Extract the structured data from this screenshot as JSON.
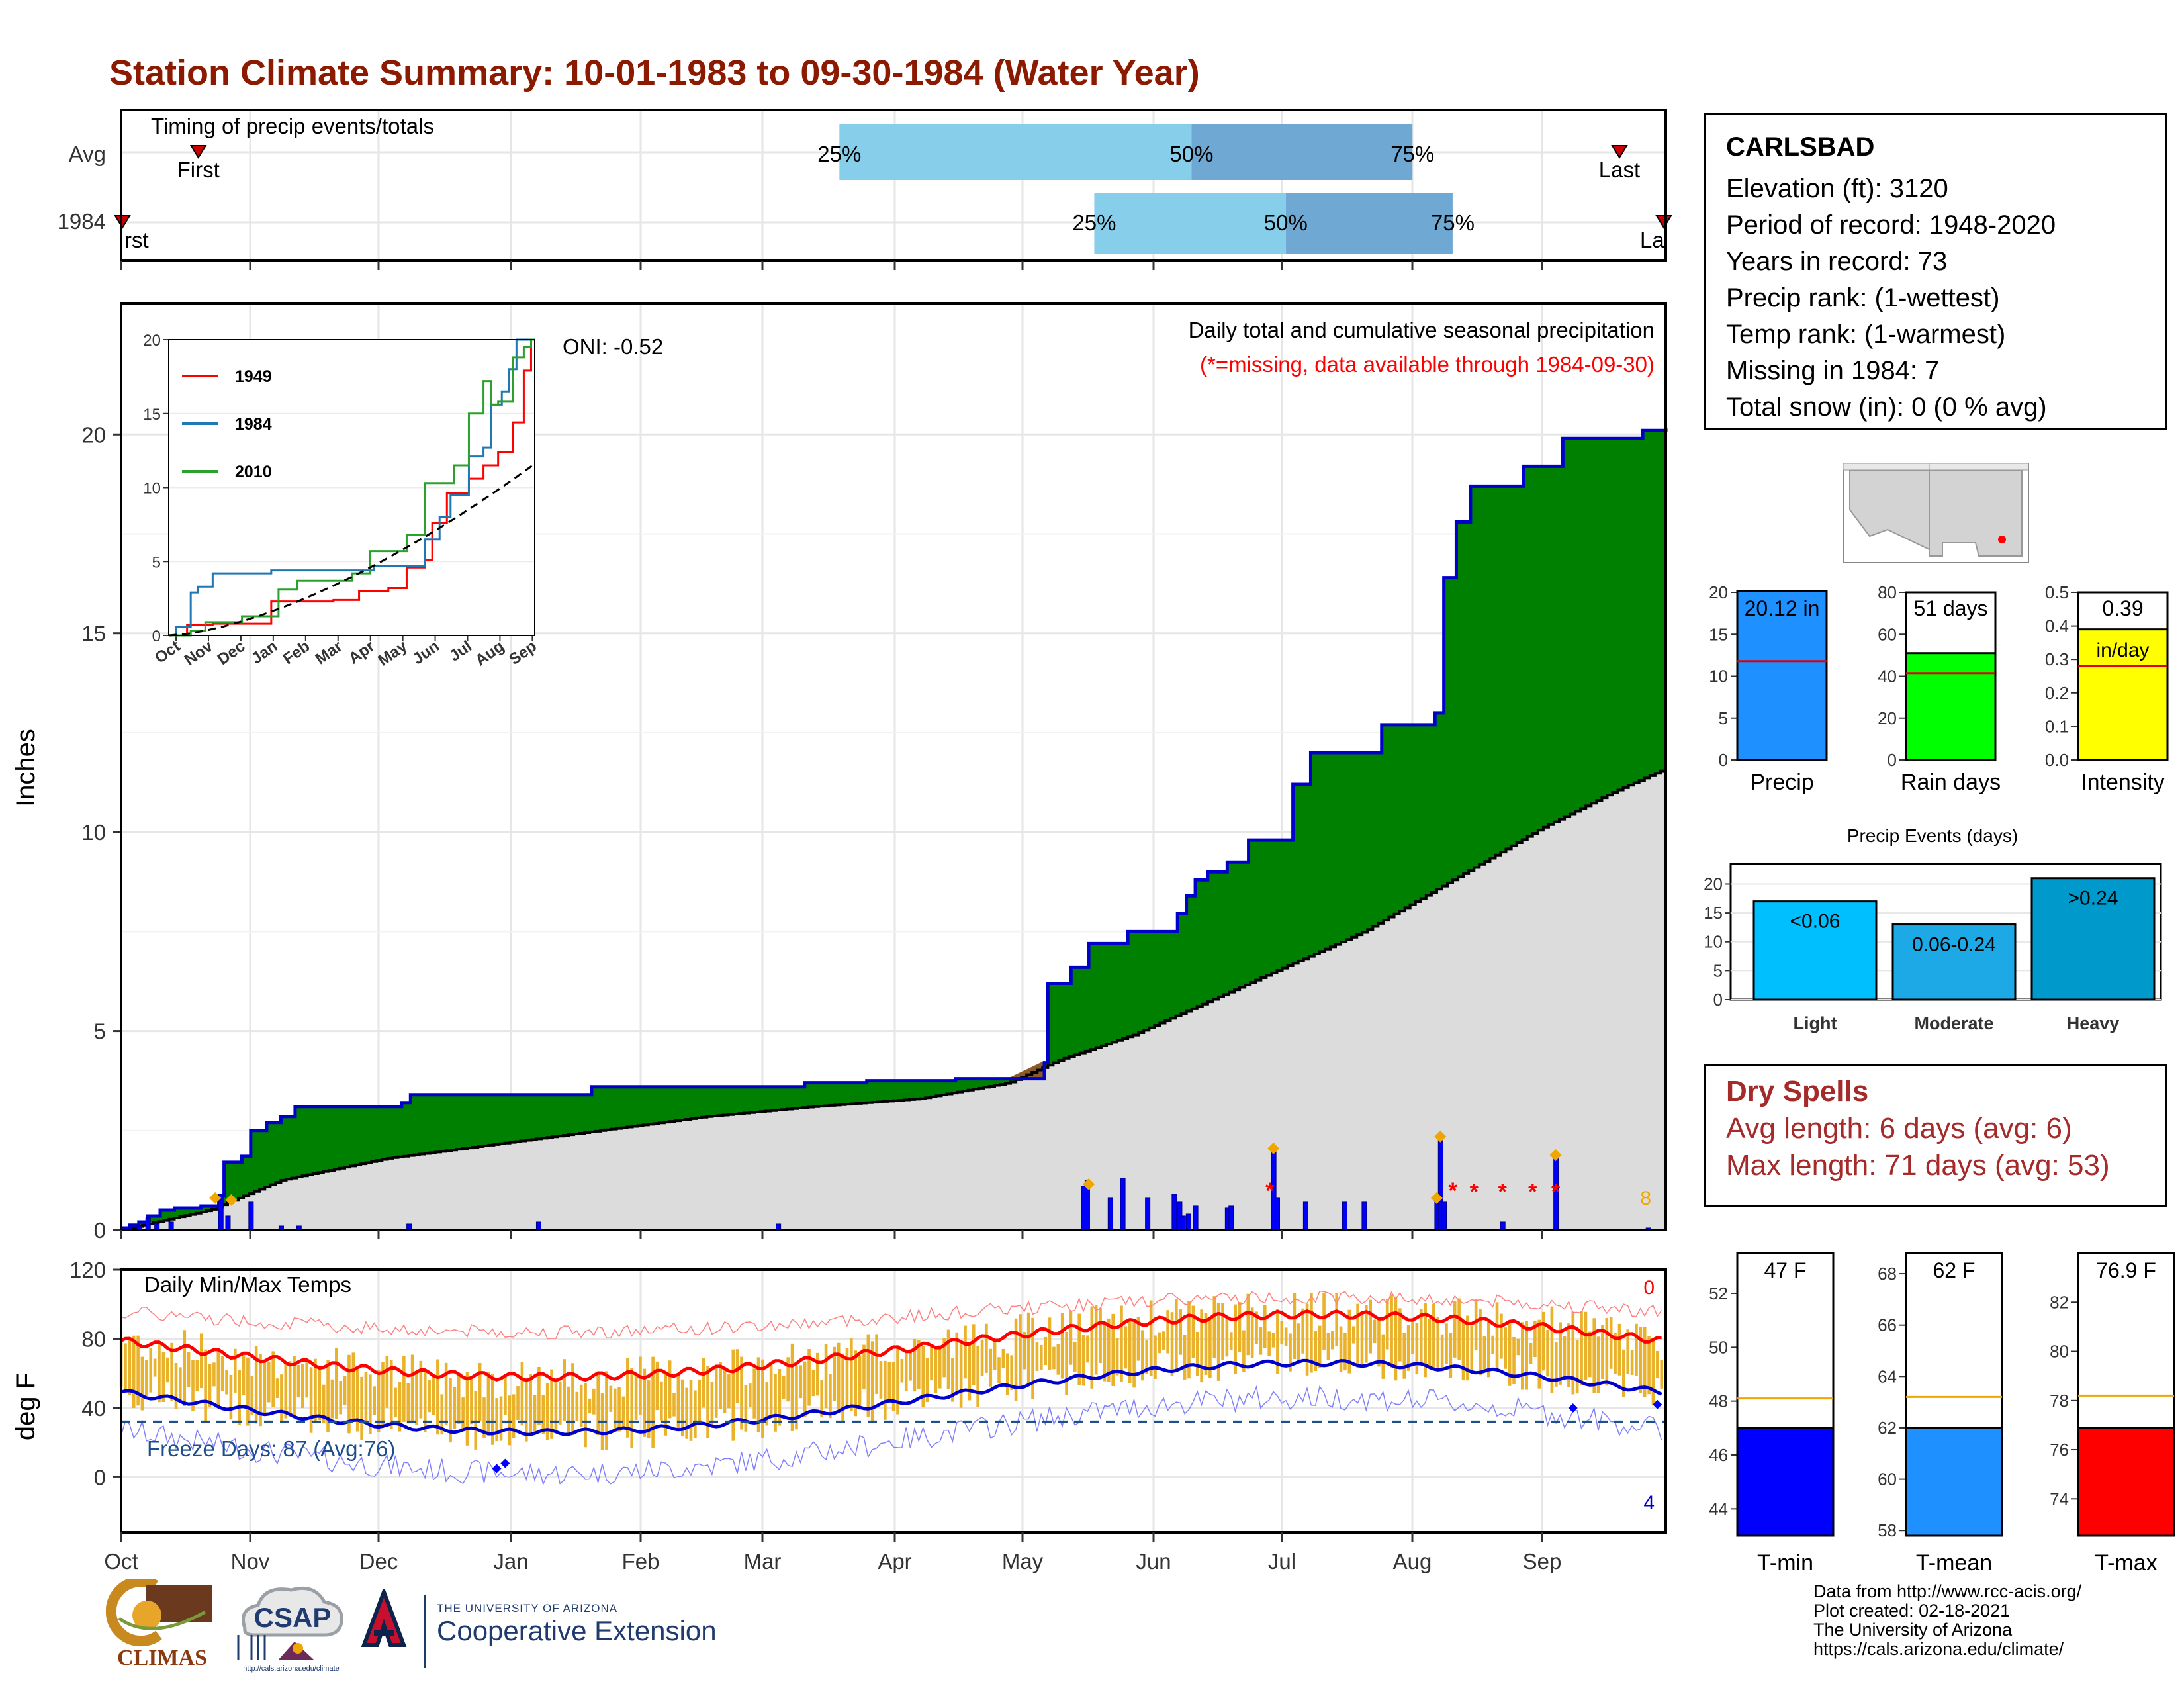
{
  "title": "Station Climate Summary: 10-01-1983 to 09-30-1984 (Water Year)",
  "colors": {
    "title": "#8b1a00",
    "green": "#008000",
    "blue_line": "#0000cd",
    "gray_fill": "#dcdcdc",
    "orange": "#f0a500",
    "red": "#ff0000",
    "light_blue": "#87ceeb",
    "mid_blue": "#6fa8d2"
  },
  "months": [
    "Oct",
    "Nov",
    "Dec",
    "Jan",
    "Feb",
    "Mar",
    "Apr",
    "May",
    "Jun",
    "Jul",
    "Aug",
    "Sep"
  ],
  "timing": {
    "label": "Timing of precip events/totals",
    "rows": [
      "Avg",
      "1984"
    ],
    "avg": {
      "first": 0.05,
      "last": 0.97,
      "q25": 0.465,
      "q50": 0.693,
      "q75": 0.836
    },
    "y1984": {
      "first": 0.0,
      "last": 1.0,
      "q25": 0.63,
      "q50": 0.754,
      "q75": 0.862
    },
    "first_label": "First",
    "last_label": "Last",
    "pct": [
      "25%",
      "50%",
      "75%"
    ],
    "cut_first": "rst",
    "cut_last": "La"
  },
  "precip": {
    "annot_title": "Daily total and cumulative seasonal precipitation",
    "annot_missing": "(*=missing, data available through 1984-09-30)",
    "oni": "ONI: -0.52",
    "ylabel": "Inches",
    "ylim": [
      0,
      22
    ],
    "yticks": [
      0,
      5,
      10,
      15,
      20
    ],
    "missing_count": "8",
    "cumulative_steps": [
      [
        0,
        0.05
      ],
      [
        5,
        0.12
      ],
      [
        10,
        0.2
      ],
      [
        15,
        0.35
      ],
      [
        22,
        0.5
      ],
      [
        30,
        0.55
      ],
      [
        45,
        0.6
      ],
      [
        55,
        0.85
      ],
      [
        58,
        1.7
      ],
      [
        68,
        1.85
      ],
      [
        73,
        2.5
      ],
      [
        82,
        2.7
      ],
      [
        90,
        2.85
      ],
      [
        98,
        3.1
      ],
      [
        140,
        3.1
      ],
      [
        158,
        3.2
      ],
      [
        163,
        3.4
      ],
      [
        240,
        3.4
      ],
      [
        265,
        3.6
      ],
      [
        340,
        3.6
      ],
      [
        385,
        3.7
      ],
      [
        420,
        3.75
      ],
      [
        470,
        3.8
      ],
      [
        500,
        3.8
      ],
      [
        520,
        4.2
      ],
      [
        522,
        6.2
      ],
      [
        535,
        6.6
      ],
      [
        545,
        7.2
      ],
      [
        567,
        7.5
      ],
      [
        595,
        7.95
      ],
      [
        600,
        8.4
      ],
      [
        605,
        8.8
      ],
      [
        612,
        9.0
      ],
      [
        623,
        9.25
      ],
      [
        635,
        9.8
      ],
      [
        660,
        11.2
      ],
      [
        670,
        12.0
      ],
      [
        700,
        12.0
      ],
      [
        710,
        12.7
      ],
      [
        735,
        12.7
      ],
      [
        740,
        13.0
      ],
      [
        745,
        16.4
      ],
      [
        752,
        17.8
      ],
      [
        760,
        18.7
      ],
      [
        790,
        19.2
      ],
      [
        812,
        19.9
      ],
      [
        850,
        19.9
      ],
      [
        857,
        20.1
      ],
      [
        870,
        20.15
      ]
    ],
    "normal_points": [
      [
        0,
        0
      ],
      [
        50,
        0.5
      ],
      [
        90,
        1.25
      ],
      [
        150,
        1.8
      ],
      [
        210,
        2.15
      ],
      [
        270,
        2.5
      ],
      [
        330,
        2.85
      ],
      [
        390,
        3.1
      ],
      [
        450,
        3.3
      ],
      [
        500,
        3.7
      ],
      [
        530,
        4.3
      ],
      [
        570,
        4.9
      ],
      [
        610,
        5.7
      ],
      [
        650,
        6.5
      ],
      [
        700,
        7.5
      ],
      [
        750,
        8.8
      ],
      [
        800,
        10.1
      ],
      [
        840,
        11.0
      ],
      [
        870,
        11.6
      ]
    ],
    "daily_bars": [
      [
        10,
        0.1
      ],
      [
        15,
        0.3
      ],
      [
        20,
        0.15
      ],
      [
        28,
        0.2
      ],
      [
        56,
        0.9
      ],
      [
        60,
        0.35
      ],
      [
        73,
        0.7
      ],
      [
        90,
        0.1
      ],
      [
        100,
        0.1
      ],
      [
        162,
        0.15
      ],
      [
        235,
        0.2
      ],
      [
        370,
        0.15
      ],
      [
        542,
        1.1
      ],
      [
        544,
        1.25
      ],
      [
        557,
        0.8
      ],
      [
        564,
        1.3
      ],
      [
        578,
        0.8
      ],
      [
        593,
        0.9
      ],
      [
        596,
        0.7
      ],
      [
        598,
        0.35
      ],
      [
        601,
        0.4
      ],
      [
        605,
        0.6
      ],
      [
        623,
        0.55
      ],
      [
        625,
        0.6
      ],
      [
        649,
        2.0
      ],
      [
        651,
        0.8
      ],
      [
        667,
        0.7
      ],
      [
        689,
        0.7
      ],
      [
        700,
        0.7
      ],
      [
        741,
        0.8
      ],
      [
        743,
        2.3
      ],
      [
        745,
        0.7
      ],
      [
        778,
        0.2
      ],
      [
        808,
        1.8
      ],
      [
        860,
        0.05
      ]
    ],
    "orange_diamonds": [
      [
        53,
        0.8
      ],
      [
        62,
        0.75
      ],
      [
        545,
        1.15
      ],
      [
        649,
        2.05
      ],
      [
        741,
        0.8
      ],
      [
        743,
        2.35
      ],
      [
        808,
        1.88
      ]
    ],
    "missing_markers": [
      [
        647,
        1.0
      ],
      [
        750,
        1.0
      ],
      [
        762,
        0.97
      ],
      [
        778,
        0.97
      ],
      [
        795,
        0.97
      ],
      [
        808,
        0.97
      ]
    ]
  },
  "inset": {
    "legend": [
      "1949",
      "1984",
      "2010"
    ],
    "legend_colors": [
      "#ff0000",
      "#1f77b4",
      "#2ca02c"
    ],
    "yticks": [
      0,
      5,
      10,
      15,
      20
    ],
    "xticks": [
      "Oct",
      "Nov",
      "Dec",
      "Jan",
      "Feb",
      "Mar",
      "Apr",
      "May",
      "Jun",
      "Jul",
      "Aug",
      "Sep"
    ]
  },
  "temps": {
    "label": "Daily Min/Max Temps",
    "ylabel": "deg F",
    "ylim": [
      -30,
      120
    ],
    "yticks": [
      0,
      40,
      80,
      120
    ],
    "freeze_label": "Freeze Days: 87 (Avg:76)",
    "freeze_line": 32,
    "count_top": "0",
    "count_bottom": "4"
  },
  "station": {
    "name": "CARLSBAD",
    "lines": [
      "Elevation (ft): 3120",
      "Period of record: 1948-2020",
      "Years in record: 73",
      "Precip rank:  (1-wettest)",
      "Temp rank:  (1-warmest)",
      "Missing in 1984: 7",
      "Total snow (in): 0 (0 % avg)"
    ]
  },
  "mini_bars": [
    {
      "label": "Precip",
      "value": 20.12,
      "text": "20.12 in",
      "avg": 11.8,
      "max": 20,
      "ticks": [
        0,
        5,
        10,
        15,
        20
      ],
      "color": "#1e90ff"
    },
    {
      "label": "Rain days",
      "value": 51,
      "text": "51 days",
      "avg": 41.5,
      "max": 80,
      "ticks": [
        0,
        20,
        40,
        60,
        80
      ],
      "color": "#00ff00"
    },
    {
      "label": "Intensity",
      "value": 0.39,
      "text": "0.39",
      "sub": "in/day",
      "avg": 0.28,
      "max": 0.5,
      "ticks": [
        "0.0",
        "0.1",
        "0.2",
        "0.3",
        "0.4",
        "0.5"
      ],
      "color": "#ffff00"
    }
  ],
  "events": {
    "title": "Precip Events (days)",
    "categories": [
      "Light",
      "Moderate",
      "Heavy"
    ],
    "values": [
      17,
      13,
      21
    ],
    "labels": [
      "<0.06",
      "0.06-0.24",
      ">0.24"
    ],
    "ticks": [
      0,
      5,
      10,
      15,
      20
    ],
    "colors": [
      "#00bfff",
      "#1ca9e6",
      "#0099cc"
    ]
  },
  "dry_spells": {
    "title": "Dry Spells",
    "avg": "Avg length: 6 days (avg: 6)",
    "max": "Max length: 71 days (avg: 53)"
  },
  "temp_bars": [
    {
      "label": "T-min",
      "text": "47 F",
      "value": 47,
      "avg": 48.1,
      "range": [
        43,
        53.5
      ],
      "ticks": [
        44,
        46,
        48,
        50,
        52
      ],
      "color": "#0000ff"
    },
    {
      "label": "T-mean",
      "text": "62 F",
      "value": 62,
      "avg": 63.2,
      "range": [
        57.8,
        68.8
      ],
      "ticks": [
        58,
        60,
        62,
        64,
        66,
        68
      ],
      "color": "#1e90ff"
    },
    {
      "label": "T-max",
      "text": "76.9 F",
      "value": 76.9,
      "avg": 78.2,
      "range": [
        72.5,
        84
      ],
      "ticks": [
        74,
        76,
        78,
        80,
        82
      ],
      "color": "#ff0000"
    }
  ],
  "footer": [
    "Data from http://www.rcc-acis.org/",
    "Plot created: 02-18-2021",
    "The University of Arizona",
    "https://cals.arizona.edu/climate/"
  ],
  "logos": {
    "climas": "CLIMAS",
    "csap": "CSAP",
    "csap_url": "http://cals.arizona.edu/climate",
    "ua_small": "THE UNIVERSITY OF ARIZONA",
    "ua_big": "Cooperative Extension"
  }
}
